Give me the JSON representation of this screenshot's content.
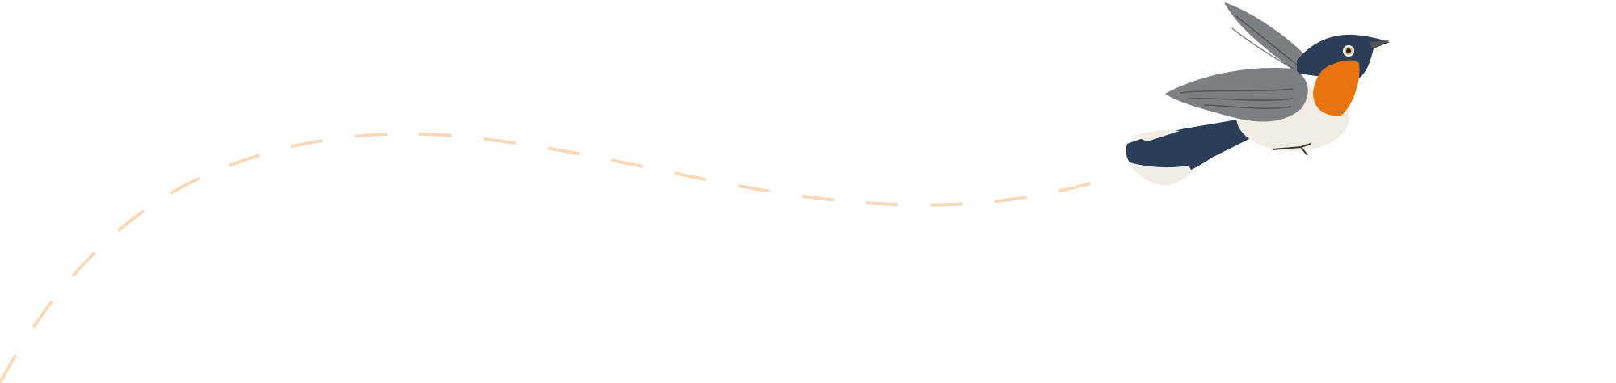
{
  "illustration": {
    "subject": "bird-icon",
    "path_style": "dashed",
    "colors": {
      "path": "#fbd9b8",
      "bird_back": "#2c3e57",
      "bird_throat": "#e8730f",
      "bird_belly": "#f1ede4",
      "bird_wing": "#7d7f82"
    }
  }
}
